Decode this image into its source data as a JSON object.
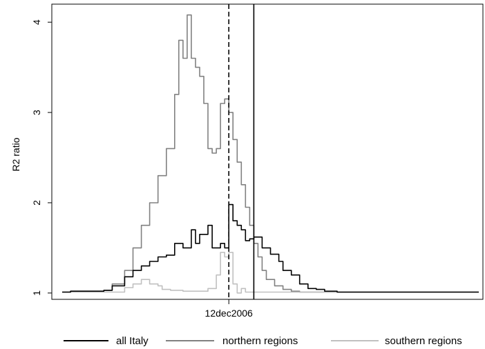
{
  "chart_data": {
    "type": "line",
    "title": "",
    "xlabel": "",
    "ylabel": "R2 ratio",
    "ylim": [
      0.93,
      4.2
    ],
    "yticks": [
      1,
      2,
      3,
      4
    ],
    "x_tick_label": "12dec2006",
    "grid": false,
    "legend_position": "bottom",
    "markers": [
      {
        "type": "vline",
        "style": "dashed",
        "x": 0.4
      },
      {
        "type": "vline",
        "style": "solid",
        "x": 0.46
      }
    ],
    "series": [
      {
        "name": "all Italy",
        "color": "#000000",
        "x": [
          0.0,
          0.02,
          0.06,
          0.1,
          0.12,
          0.15,
          0.17,
          0.19,
          0.21,
          0.23,
          0.25,
          0.27,
          0.29,
          0.31,
          0.32,
          0.33,
          0.35,
          0.36,
          0.37,
          0.38,
          0.39,
          0.4,
          0.41,
          0.42,
          0.43,
          0.44,
          0.45,
          0.46,
          0.47,
          0.48,
          0.5,
          0.52,
          0.53,
          0.55,
          0.57,
          0.59,
          0.61,
          0.63,
          0.66,
          0.7,
          0.8,
          0.9,
          1.0
        ],
        "values": [
          1.01,
          1.02,
          1.02,
          1.03,
          1.08,
          1.18,
          1.25,
          1.3,
          1.35,
          1.4,
          1.42,
          1.55,
          1.5,
          1.7,
          1.55,
          1.65,
          1.75,
          1.5,
          1.5,
          1.55,
          1.5,
          1.98,
          1.8,
          1.75,
          1.7,
          1.58,
          1.6,
          1.62,
          1.62,
          1.5,
          1.43,
          1.35,
          1.25,
          1.2,
          1.1,
          1.05,
          1.04,
          1.02,
          1.01,
          1.01,
          1.01,
          1.01,
          1.01
        ]
      },
      {
        "name": "northern regions",
        "color": "#808080",
        "x": [
          0.0,
          0.02,
          0.06,
          0.1,
          0.12,
          0.15,
          0.17,
          0.19,
          0.21,
          0.23,
          0.25,
          0.27,
          0.28,
          0.29,
          0.3,
          0.31,
          0.32,
          0.33,
          0.34,
          0.35,
          0.36,
          0.37,
          0.38,
          0.39,
          0.4,
          0.41,
          0.42,
          0.43,
          0.44,
          0.45,
          0.46,
          0.47,
          0.48,
          0.49,
          0.51,
          0.53,
          0.55,
          0.57,
          0.59,
          0.61,
          0.63,
          0.66,
          0.7,
          0.8,
          0.9,
          1.0
        ],
        "values": [
          1.01,
          1.02,
          1.02,
          1.03,
          1.1,
          1.25,
          1.5,
          1.75,
          2.0,
          2.3,
          2.6,
          3.2,
          3.8,
          3.6,
          4.08,
          3.6,
          3.5,
          3.4,
          3.1,
          2.6,
          2.55,
          2.6,
          3.1,
          3.15,
          3.0,
          2.7,
          2.45,
          2.2,
          1.95,
          1.75,
          1.55,
          1.4,
          1.25,
          1.15,
          1.08,
          1.04,
          1.02,
          1.01,
          1.01,
          1.01,
          1.01,
          1.01,
          1.01,
          1.01,
          1.01,
          1.01
        ]
      },
      {
        "name": "southern regions",
        "color": "#c0c0c0",
        "x": [
          0.0,
          0.02,
          0.06,
          0.1,
          0.12,
          0.15,
          0.17,
          0.19,
          0.21,
          0.23,
          0.24,
          0.26,
          0.29,
          0.31,
          0.33,
          0.35,
          0.37,
          0.38,
          0.39,
          0.4,
          0.41,
          0.42,
          0.43,
          0.44,
          0.46,
          0.5,
          0.55,
          0.6,
          0.7,
          0.8,
          0.9,
          1.0
        ],
        "values": [
          1.01,
          1.01,
          1.01,
          1.01,
          1.01,
          1.06,
          1.1,
          1.15,
          1.1,
          1.08,
          1.04,
          1.03,
          1.02,
          1.02,
          1.02,
          1.05,
          1.2,
          1.45,
          1.4,
          1.45,
          1.1,
          1.0,
          1.05,
          1.01,
          1.01,
          1.01,
          1.01,
          1.01,
          1.01,
          1.01,
          1.01,
          1.01
        ]
      }
    ]
  }
}
